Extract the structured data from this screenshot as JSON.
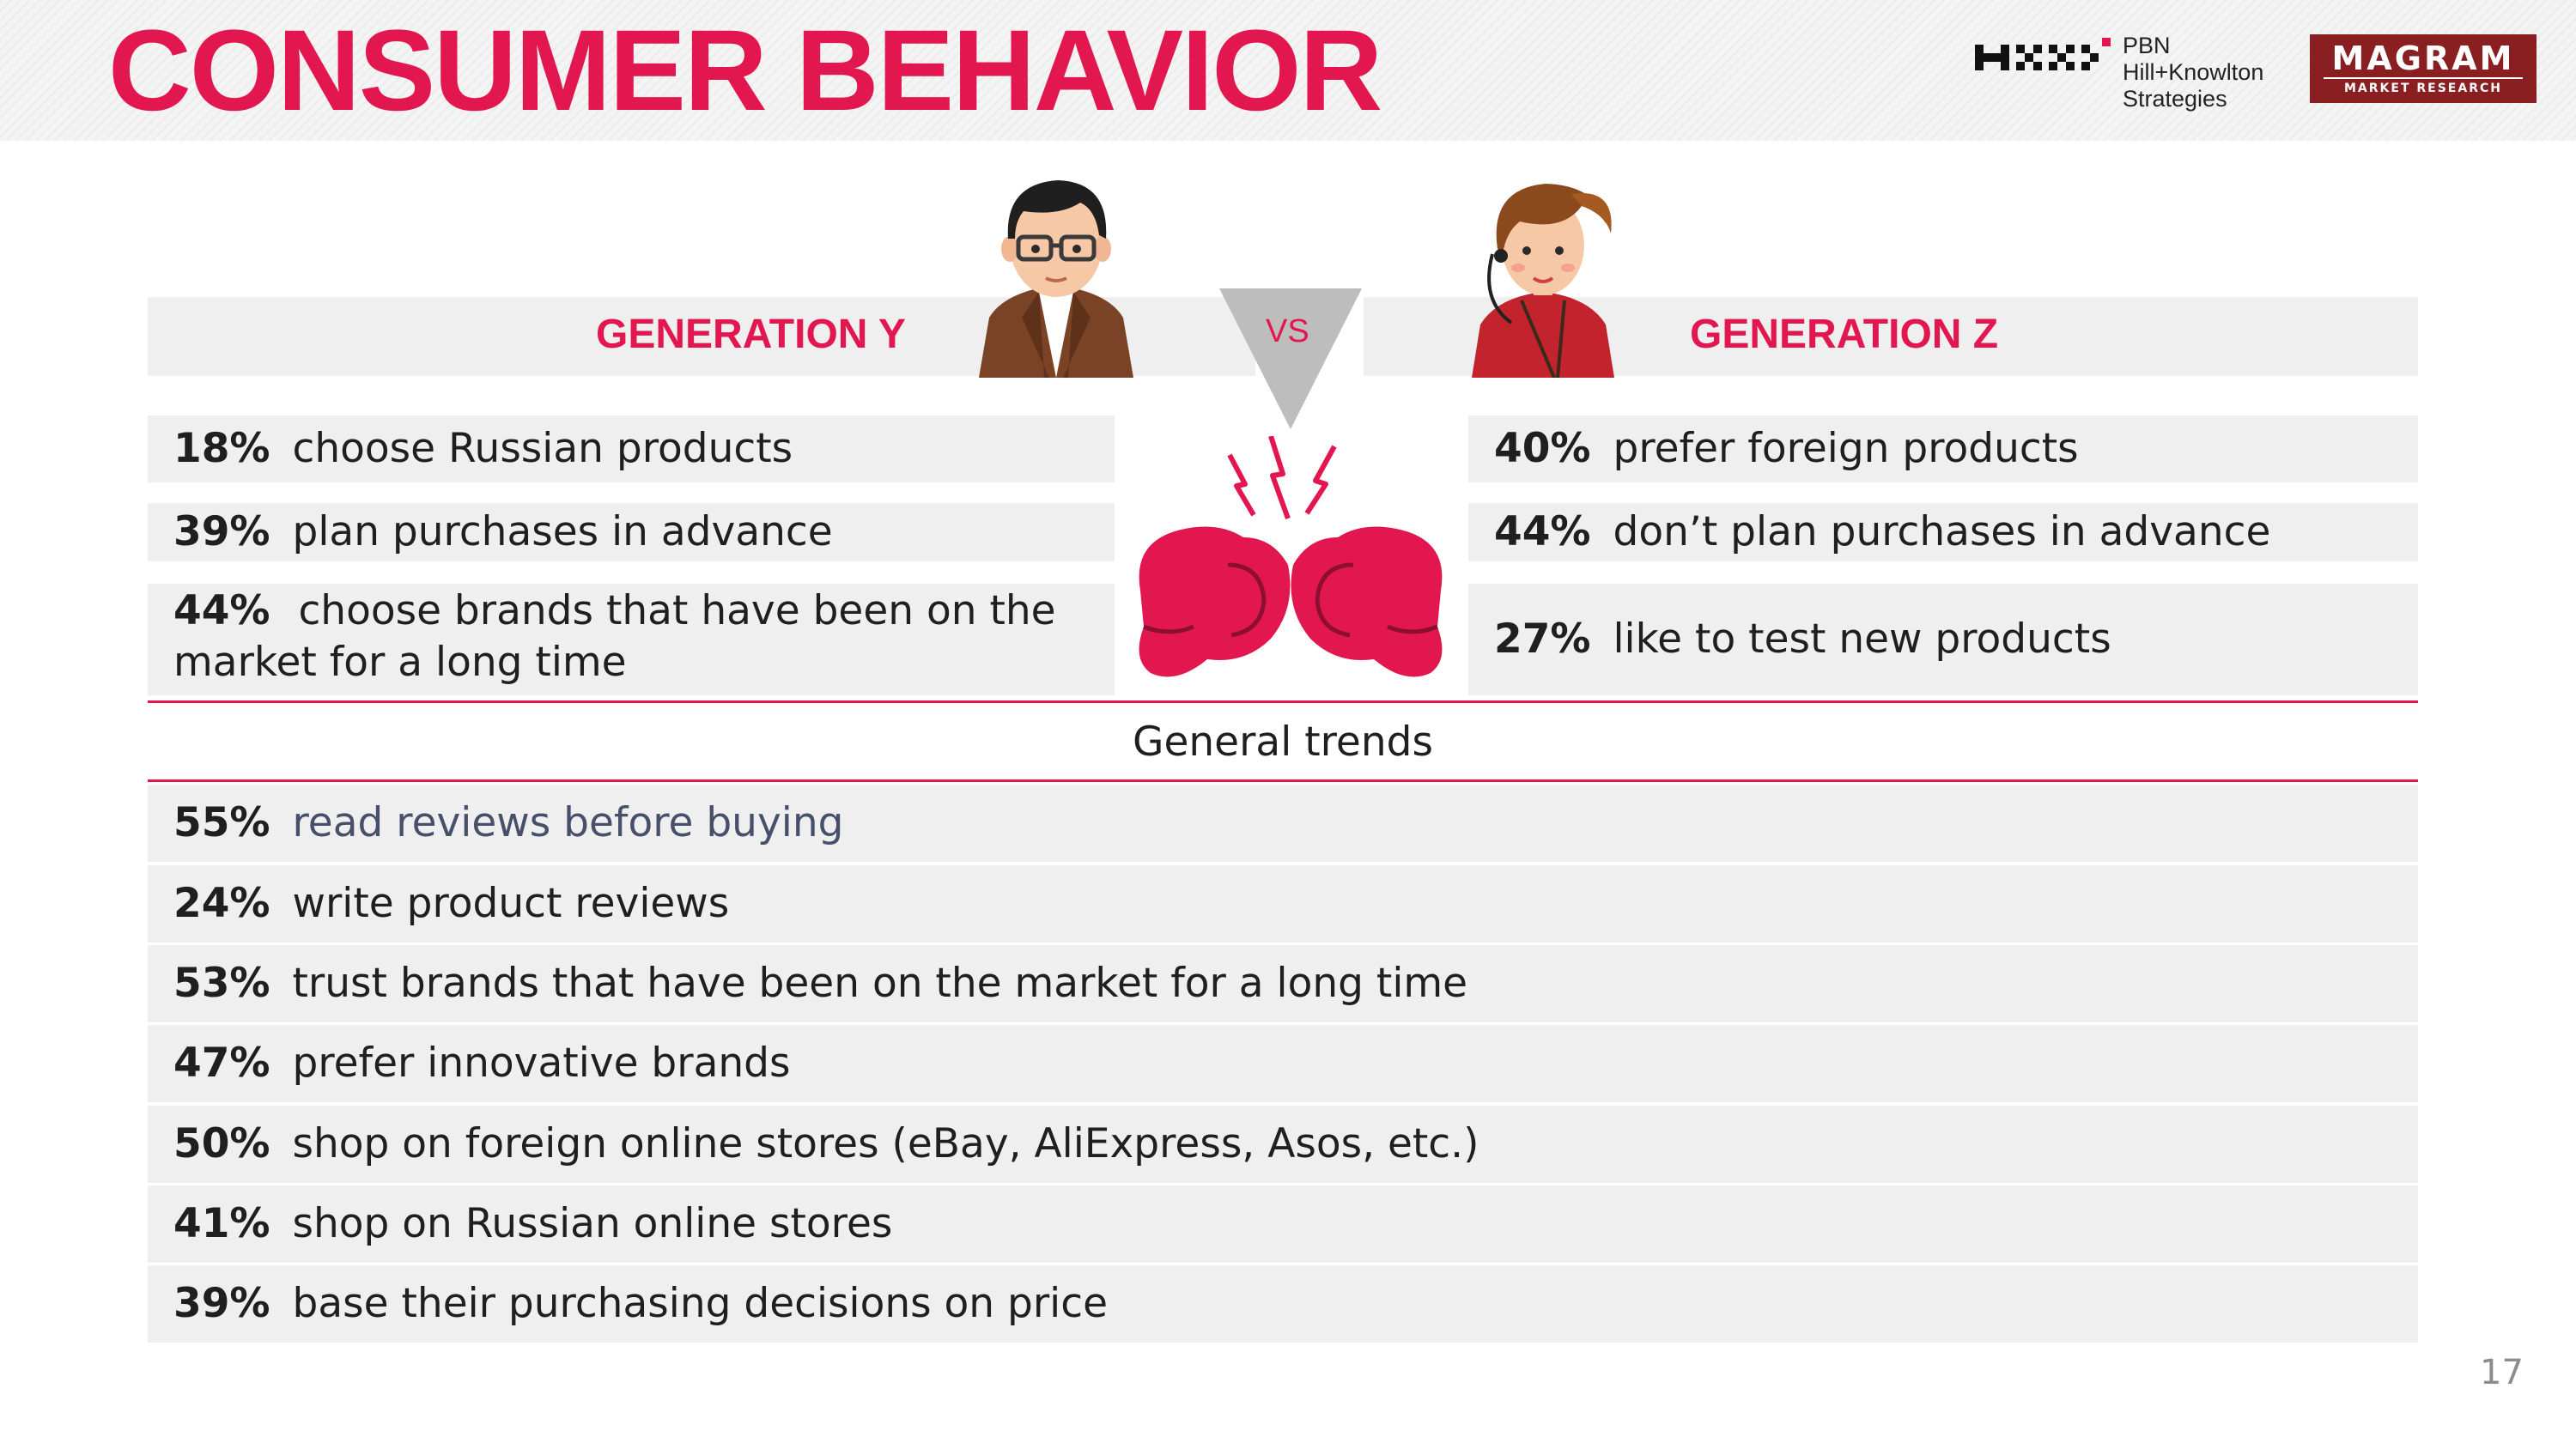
{
  "header": {
    "title": "CONSUMER BEHAVIOR",
    "logos": {
      "pbn": {
        "lines": [
          "PBN",
          "Hill+Knowlton",
          "Strategies"
        ]
      },
      "magram": {
        "name": "MAGRAM",
        "subtitle": "MARKET RESEARCH",
        "color": "#8a1f21"
      }
    }
  },
  "colors": {
    "accent": "#e3174f",
    "row_bg": "#efefef",
    "text": "#1f1f1f"
  },
  "comparison": {
    "vs_label": "VS",
    "generation_y": {
      "title": "GENERATION Y",
      "stats": [
        {
          "pct": "18%",
          "text": "choose Russian products"
        },
        {
          "pct": "39%",
          "text": "plan purchases in advance"
        },
        {
          "pct": "44%",
          "text": "choose brands that have been on the",
          "text_cont": "market for a long time"
        }
      ]
    },
    "generation_z": {
      "title": "GENERATION Z",
      "stats": [
        {
          "pct": "40%",
          "text": "prefer foreign products"
        },
        {
          "pct": "44%",
          "text": "don’t plan purchases in advance"
        },
        {
          "pct": "27%",
          "text": "like to test new products"
        }
      ]
    }
  },
  "general_trends": {
    "label": "General trends",
    "items": [
      {
        "pct": "55%",
        "text": "read reviews before buying"
      },
      {
        "pct": "24%",
        "text": "write product reviews"
      },
      {
        "pct": "53%",
        "text": "trust brands that have been on the market for a long time"
      },
      {
        "pct": "47%",
        "text": "prefer innovative brands"
      },
      {
        "pct": "50%",
        "text": "shop on foreign online stores (eBay, AliExpress, Asos, etc.)"
      },
      {
        "pct": "41%",
        "text": "shop on Russian online stores"
      },
      {
        "pct": "39%",
        "text": "base their purchasing decisions on price"
      }
    ]
  },
  "icons": [
    "man-glasses-avatar-icon",
    "woman-headphones-avatar-icon",
    "vs-triangle-icon",
    "boxing-gloves-icon"
  ],
  "page_number": "17"
}
